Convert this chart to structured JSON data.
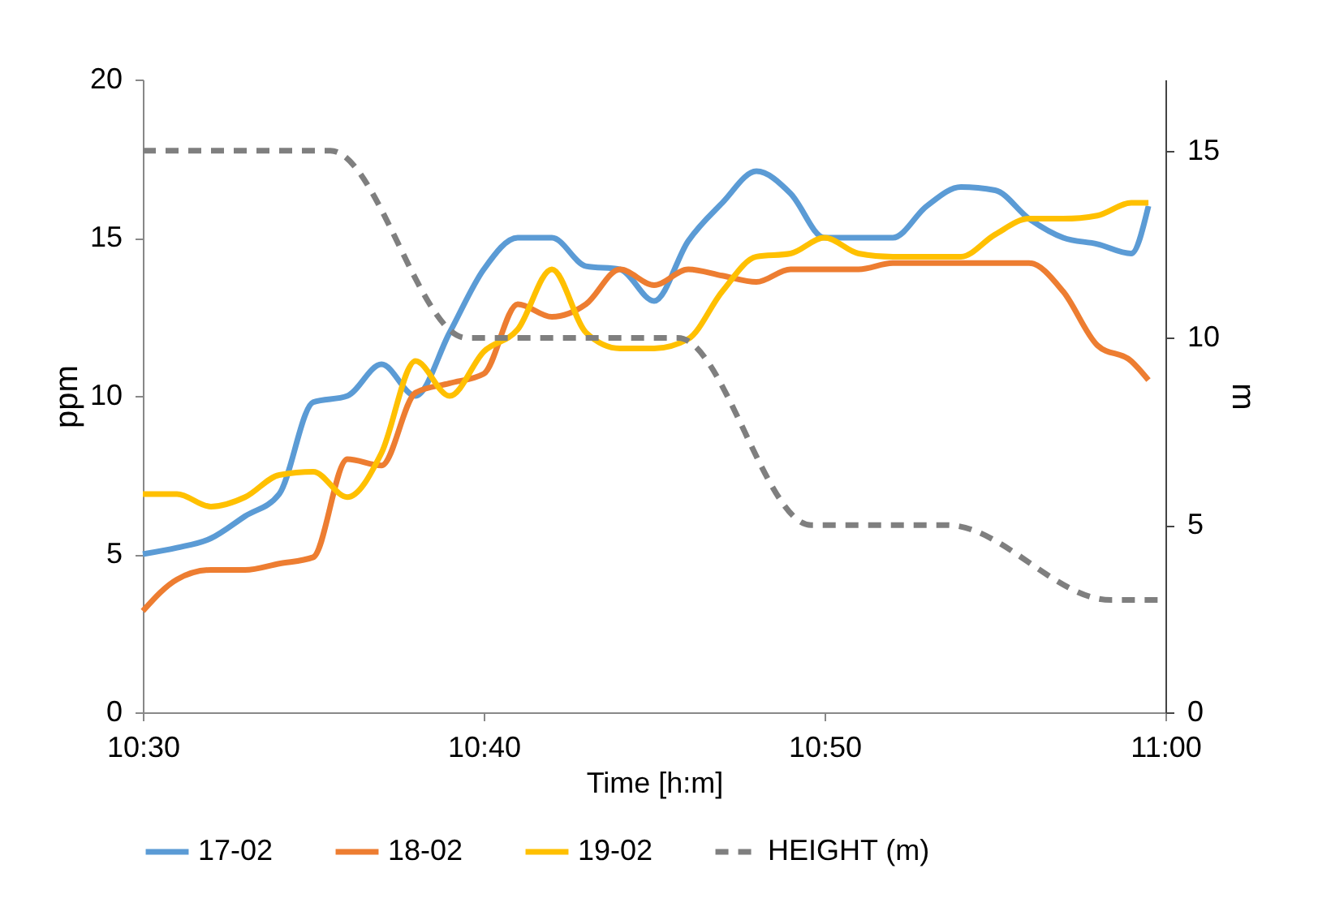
{
  "chart_data": {
    "type": "line",
    "xlabel": "Time [h:m]",
    "ylabel": "ppm",
    "y2label": "m",
    "x": [
      10.5,
      10.5167,
      10.5333,
      10.55,
      10.5667,
      10.5833,
      10.6,
      10.6167,
      10.6333,
      10.65,
      10.6667,
      10.6833,
      10.7,
      10.7167,
      10.7333,
      10.75,
      10.7667,
      10.7833,
      10.8,
      10.8167,
      10.8333,
      10.85,
      10.8667,
      10.8833,
      10.9,
      10.9167,
      10.9333,
      10.95,
      10.9667,
      10.9833,
      10.9917
    ],
    "series": [
      {
        "name": "17-02",
        "color": "#5b9bd5",
        "line_style": "solid",
        "values": [
          5.0,
          5.2,
          5.5,
          6.2,
          6.9,
          9.8,
          10.0,
          11.0,
          10.0,
          12.0,
          14.0,
          15.0,
          15.0,
          14.1,
          14.0,
          13.0,
          14.9,
          16.1,
          17.1,
          16.4,
          15.0,
          15.0,
          15.0,
          16.0,
          16.6,
          16.5,
          15.6,
          15.0,
          14.8,
          14.5,
          16.0
        ]
      },
      {
        "name": "18-02",
        "color": "#ed7d31",
        "line_style": "solid",
        "values": [
          3.2,
          4.2,
          4.5,
          4.5,
          4.7,
          4.9,
          8.0,
          7.8,
          10.1,
          10.4,
          10.7,
          12.9,
          12.5,
          12.9,
          14.0,
          13.5,
          14.0,
          13.8,
          13.6,
          14.0,
          14.0,
          14.0,
          14.2,
          14.2,
          14.2,
          14.2,
          14.2,
          13.3,
          11.6,
          11.1,
          10.5
        ]
      },
      {
        "name": "19-02",
        "color": "#ffc000",
        "line_style": "solid",
        "values": [
          6.9,
          6.9,
          6.5,
          6.8,
          7.5,
          7.6,
          6.8,
          8.2,
          11.1,
          10.0,
          11.4,
          12.1,
          14.0,
          12.0,
          11.5,
          11.5,
          11.8,
          13.3,
          14.4,
          14.5,
          15.0,
          14.5,
          14.4,
          14.4,
          14.4,
          15.1,
          15.6,
          15.6,
          15.7,
          16.1,
          16.1
        ]
      },
      {
        "name": "HEIGHT (m)",
        "color": "#7f7f7f",
        "line_style": "dashed",
        "axis": "y2",
        "x": [
          10.5,
          10.5917,
          10.6583,
          10.7617,
          10.8267,
          10.8933,
          10.9733,
          11.0
        ],
        "values": [
          15,
          15,
          10,
          10,
          5,
          5,
          3,
          3
        ]
      }
    ],
    "xlim": [
      10.5,
      11.0
    ],
    "xticks": [
      {
        "value": 10.5,
        "label": "10:30"
      },
      {
        "value": 10.6667,
        "label": "10:40"
      },
      {
        "value": 10.8333,
        "label": "10:50"
      },
      {
        "value": 11.0,
        "label": "11:00"
      }
    ],
    "ylim": [
      0,
      20
    ],
    "yticks": [
      0,
      5,
      10,
      15,
      20
    ],
    "y2lim": [
      0,
      16.9
    ],
    "y2ticks": [
      0,
      5,
      10,
      15
    ],
    "grid": false,
    "legend": "bottom",
    "marker": "none"
  }
}
